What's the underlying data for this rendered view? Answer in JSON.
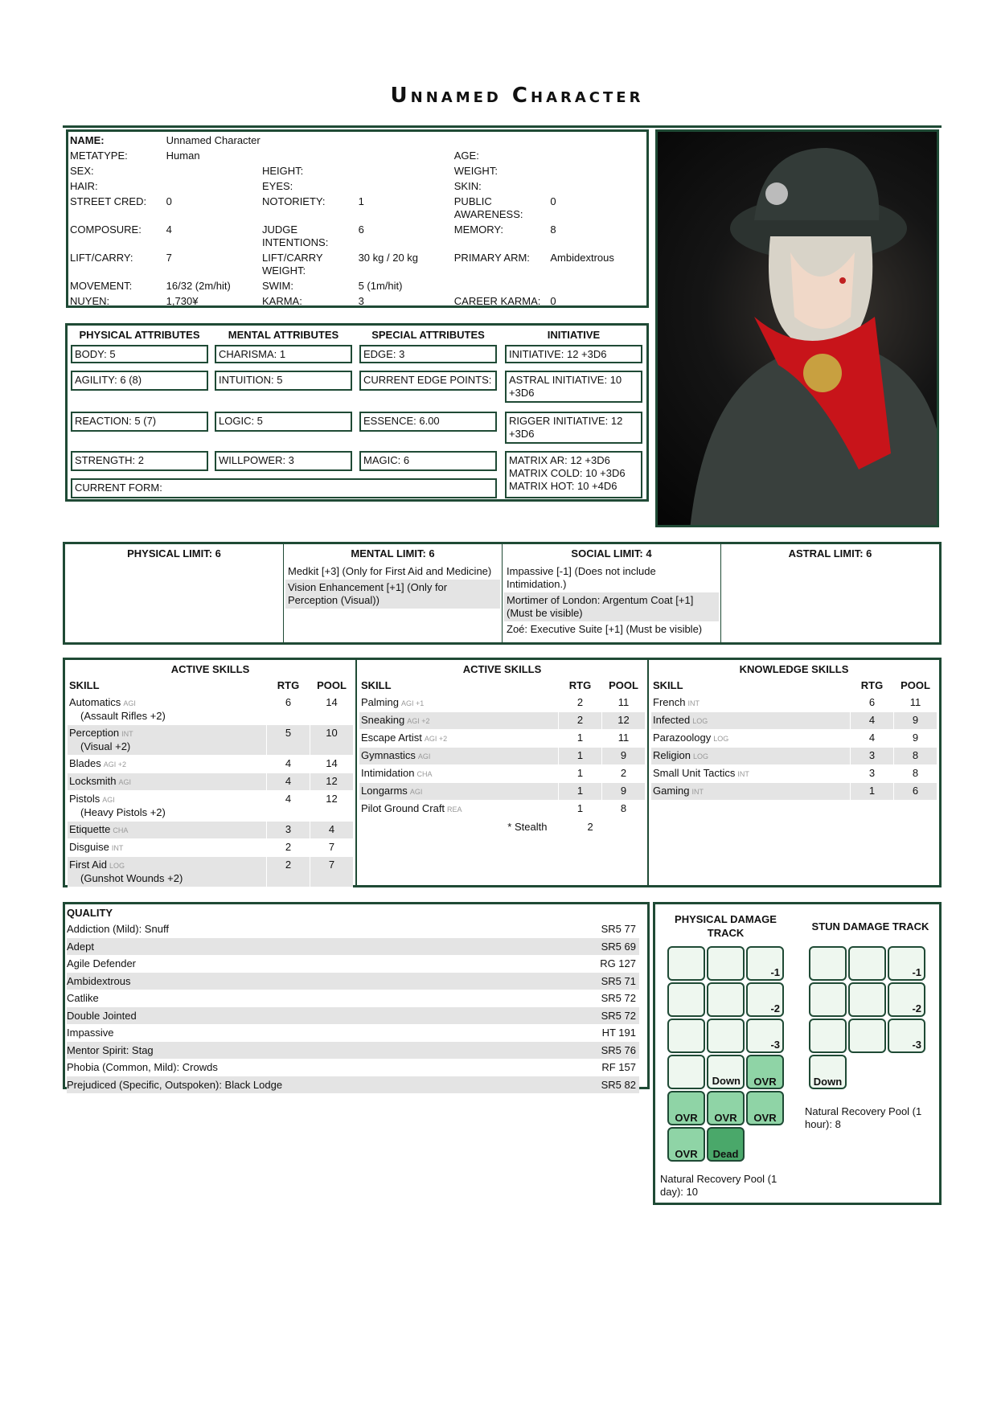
{
  "title": "Unnamed Character",
  "colors": {
    "border": "#1f4a35",
    "row_alt": "#e4e4e4",
    "track_empty": "#eef7ef",
    "track_ovr": "#8fd4a6",
    "track_dead": "#4aa86a"
  },
  "info": [
    [
      [
        "NAME:",
        "Unnamed Character"
      ],
      [
        "",
        ""
      ],
      [
        "",
        ""
      ]
    ],
    [
      [
        "METATYPE:",
        "Human"
      ],
      [
        "",
        ""
      ],
      [
        "AGE:",
        ""
      ]
    ],
    [
      [
        "SEX:",
        ""
      ],
      [
        "HEIGHT:",
        ""
      ],
      [
        "WEIGHT:",
        ""
      ]
    ],
    [
      [
        "HAIR:",
        ""
      ],
      [
        "EYES:",
        ""
      ],
      [
        "SKIN:",
        ""
      ]
    ],
    [
      [
        "STREET CRED:",
        "0"
      ],
      [
        "NOTORIETY:",
        "1"
      ],
      [
        "PUBLIC AWARENESS:",
        "0"
      ]
    ],
    [
      [
        "COMPOSURE:",
        "4"
      ],
      [
        "JUDGE INTENTIONS:",
        "6"
      ],
      [
        "MEMORY:",
        "8"
      ]
    ],
    [
      [
        "LIFT/CARRY:",
        "7"
      ],
      [
        "LIFT/CARRY WEIGHT:",
        "30 kg / 20 kg"
      ],
      [
        "PRIMARY ARM:",
        "Ambidextrous"
      ]
    ],
    [
      [
        "MOVEMENT:",
        "16/32 (2m/hit)"
      ],
      [
        "SWIM:",
        "5 (1m/hit)"
      ],
      [
        "",
        ""
      ]
    ],
    [
      [
        "NUYEN:",
        "1,730¥"
      ],
      [
        "KARMA:",
        "3"
      ],
      [
        "CAREER KARMA:",
        "0"
      ]
    ]
  ],
  "attributes": {
    "headers": [
      "PHYSICAL ATTRIBUTES",
      "MENTAL ATTRIBUTES",
      "SPECIAL ATTRIBUTES",
      "INITIATIVE"
    ],
    "physical": [
      "BODY: 5",
      "AGILITY: 6 (8)",
      "REACTION: 5 (7)",
      "STRENGTH: 2"
    ],
    "mental": [
      "CHARISMA: 1",
      "INTUITION: 5",
      "LOGIC: 5",
      "WILLPOWER: 3"
    ],
    "special": [
      "EDGE: 3",
      "CURRENT EDGE POINTS:",
      "ESSENCE: 6.00",
      "MAGIC: 6"
    ],
    "initiative": [
      "INITIATIVE: 12 +3D6",
      "ASTRAL INITIATIVE: 10 +3D6",
      "RIGGER INITIATIVE: 12 +3D6",
      "MATRIX AR: 12 +3D6\nMATRIX COLD: 10 +3D6\nMATRIX HOT: 10 +4D6"
    ],
    "current_form": "CURRENT FORM:"
  },
  "limits": [
    {
      "title": "PHYSICAL LIMIT: 6",
      "items": []
    },
    {
      "title": "MENTAL LIMIT: 6",
      "items": [
        "Medkit [+3] (Only for First Aid and Medicine)",
        "Vision Enhancement [+1] (Only for Perception (Visual))"
      ]
    },
    {
      "title": "SOCIAL LIMIT: 4",
      "items": [
        "Impassive [-1] (Does not include Intimidation.)",
        "Mortimer of London: Argentum Coat [+1] (Must be visible)",
        "Zoé: Executive Suite [+1] (Must be visible)"
      ]
    },
    {
      "title": "ASTRAL LIMIT: 6",
      "items": []
    }
  ],
  "skills": [
    {
      "title": "ACTIVE SKILLS",
      "headers": [
        "SKILL",
        "RTG",
        "POOL"
      ],
      "rows": [
        {
          "name": "Automatics",
          "attr": "AGI",
          "spec": "(Assault Rifles +2)",
          "rtg": "6",
          "pool": "14"
        },
        {
          "name": "Perception",
          "attr": "INT",
          "spec": "(Visual +2)",
          "rtg": "5",
          "pool": "10"
        },
        {
          "name": "Blades",
          "attr": "AGI +2",
          "rtg": "4",
          "pool": "14"
        },
        {
          "name": "Locksmith",
          "attr": "AGI",
          "rtg": "4",
          "pool": "12"
        },
        {
          "name": "Pistols",
          "attr": "AGI",
          "spec": "(Heavy Pistols +2)",
          "rtg": "4",
          "pool": "12"
        },
        {
          "name": "Etiquette",
          "attr": "CHA",
          "rtg": "3",
          "pool": "4"
        },
        {
          "name": "Disguise",
          "attr": "INT",
          "rtg": "2",
          "pool": "7"
        },
        {
          "name": "First Aid",
          "attr": "LOG",
          "spec": "(Gunshot Wounds +2)",
          "rtg": "2",
          "pool": "7"
        }
      ]
    },
    {
      "title": "ACTIVE SKILLS",
      "headers": [
        "SKILL",
        "RTG",
        "POOL"
      ],
      "rows": [
        {
          "name": "Palming",
          "attr": "AGI +1",
          "rtg": "2",
          "pool": "11"
        },
        {
          "name": "Sneaking",
          "attr": "AGI +2",
          "rtg": "2",
          "pool": "12"
        },
        {
          "name": "Escape Artist",
          "attr": "AGI +2",
          "rtg": "1",
          "pool": "11"
        },
        {
          "name": "Gymnastics",
          "attr": "AGI",
          "rtg": "1",
          "pool": "9"
        },
        {
          "name": "Intimidation",
          "attr": "CHA",
          "rtg": "1",
          "pool": "2"
        },
        {
          "name": "Longarms",
          "attr": "AGI",
          "rtg": "1",
          "pool": "9"
        },
        {
          "name": "Pilot Ground Craft",
          "attr": "REA",
          "rtg": "1",
          "pool": "8"
        }
      ],
      "footnote": {
        "label": "* Stealth",
        "value": "2"
      }
    },
    {
      "title": "KNOWLEDGE SKILLS",
      "headers": [
        "SKILL",
        "RTG",
        "POOL"
      ],
      "rows": [
        {
          "name": "French",
          "attr": "INT",
          "rtg": "6",
          "pool": "11"
        },
        {
          "name": "Infected",
          "attr": "LOG",
          "rtg": "4",
          "pool": "9"
        },
        {
          "name": "Parazoology",
          "attr": "LOG",
          "rtg": "4",
          "pool": "9"
        },
        {
          "name": "Religion",
          "attr": "LOG",
          "rtg": "3",
          "pool": "8"
        },
        {
          "name": "Small Unit Tactics",
          "attr": "INT",
          "rtg": "3",
          "pool": "8"
        },
        {
          "name": "Gaming",
          "attr": "INT",
          "rtg": "1",
          "pool": "6"
        }
      ]
    }
  ],
  "quality": {
    "header": "QUALITY",
    "rows": [
      [
        "Addiction (Mild): Snuff",
        "SR5 77"
      ],
      [
        "Adept",
        "SR5 69"
      ],
      [
        "Agile Defender",
        "RG 127"
      ],
      [
        "Ambidextrous",
        "SR5 71"
      ],
      [
        "Catlike",
        "SR5 72"
      ],
      [
        "Double Jointed",
        "SR5 72"
      ],
      [
        "Impassive",
        "HT 191"
      ],
      [
        "Mentor Spirit: Stag",
        "SR5 76"
      ],
      [
        "Phobia (Common, Mild): Crowds",
        "RF 157"
      ],
      [
        "Prejudiced (Specific, Outspoken): Black Lodge",
        "SR5 82"
      ]
    ]
  },
  "damage": {
    "physical": {
      "title": "PHYSICAL DAMAGE TRACK",
      "cells": [
        "",
        "",
        "-1",
        "",
        "",
        "-2",
        "",
        "",
        "-3",
        "",
        "Down",
        "OVR",
        "OVR",
        "OVR",
        "OVR",
        "OVR",
        "Dead"
      ],
      "recovery": "Natural Recovery Pool (1 day): 10"
    },
    "stun": {
      "title": "STUN DAMAGE TRACK",
      "cells": [
        "",
        "",
        "-1",
        "",
        "",
        "-2",
        "",
        "",
        "-3",
        "Down"
      ],
      "recovery": "Natural Recovery Pool (1 hour): 8"
    }
  }
}
